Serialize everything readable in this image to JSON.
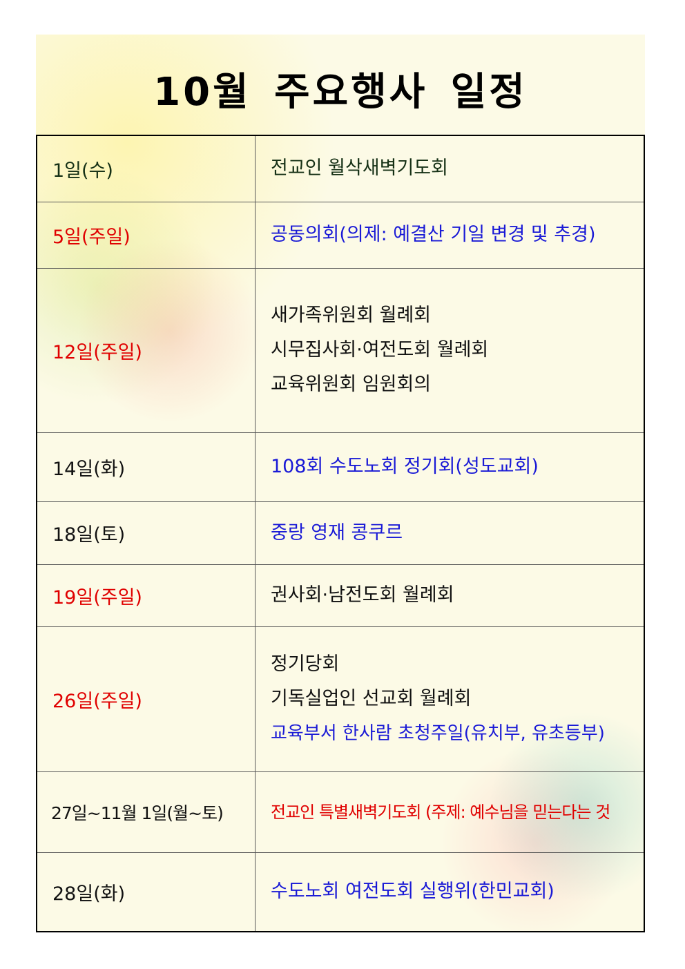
{
  "title": "10월 주요행사 일정",
  "table": {
    "rows": [
      {
        "date": "1일(수)",
        "events": [
          "전교인 월삭새벽기도회"
        ]
      },
      {
        "date": "5일(주일)",
        "events": [
          "공동의회(의제: 예결산 기일 변경 및 추경)"
        ]
      },
      {
        "date": "12일(주일)",
        "events": [
          "새가족위원회 월례회",
          "시무집사회·여전도회 월례회",
          "교육위원회 임원회의"
        ]
      },
      {
        "date": "14일(화)",
        "events": [
          "108회 수도노회 정기회(성도교회)"
        ]
      },
      {
        "date": "18일(토)",
        "events": [
          "중랑 영재 콩쿠르"
        ]
      },
      {
        "date": "19일(주일)",
        "events": [
          "권사회·남전도회 월례회"
        ]
      },
      {
        "date": "26일(주일)",
        "events": [
          "정기당회",
          "기독실업인 선교회 월례회",
          "교육부서 한사람 초청주일(유치부, 유초등부)"
        ]
      },
      {
        "date": "27일~11월 1일(월~토)",
        "events": [
          "전교인 특별새벽기도회 (주제: 예수님을 믿는다는 것"
        ]
      },
      {
        "date": "28일(화)",
        "events": [
          "수도노회 여전도회 실행위(한민교회)"
        ]
      }
    ]
  }
}
